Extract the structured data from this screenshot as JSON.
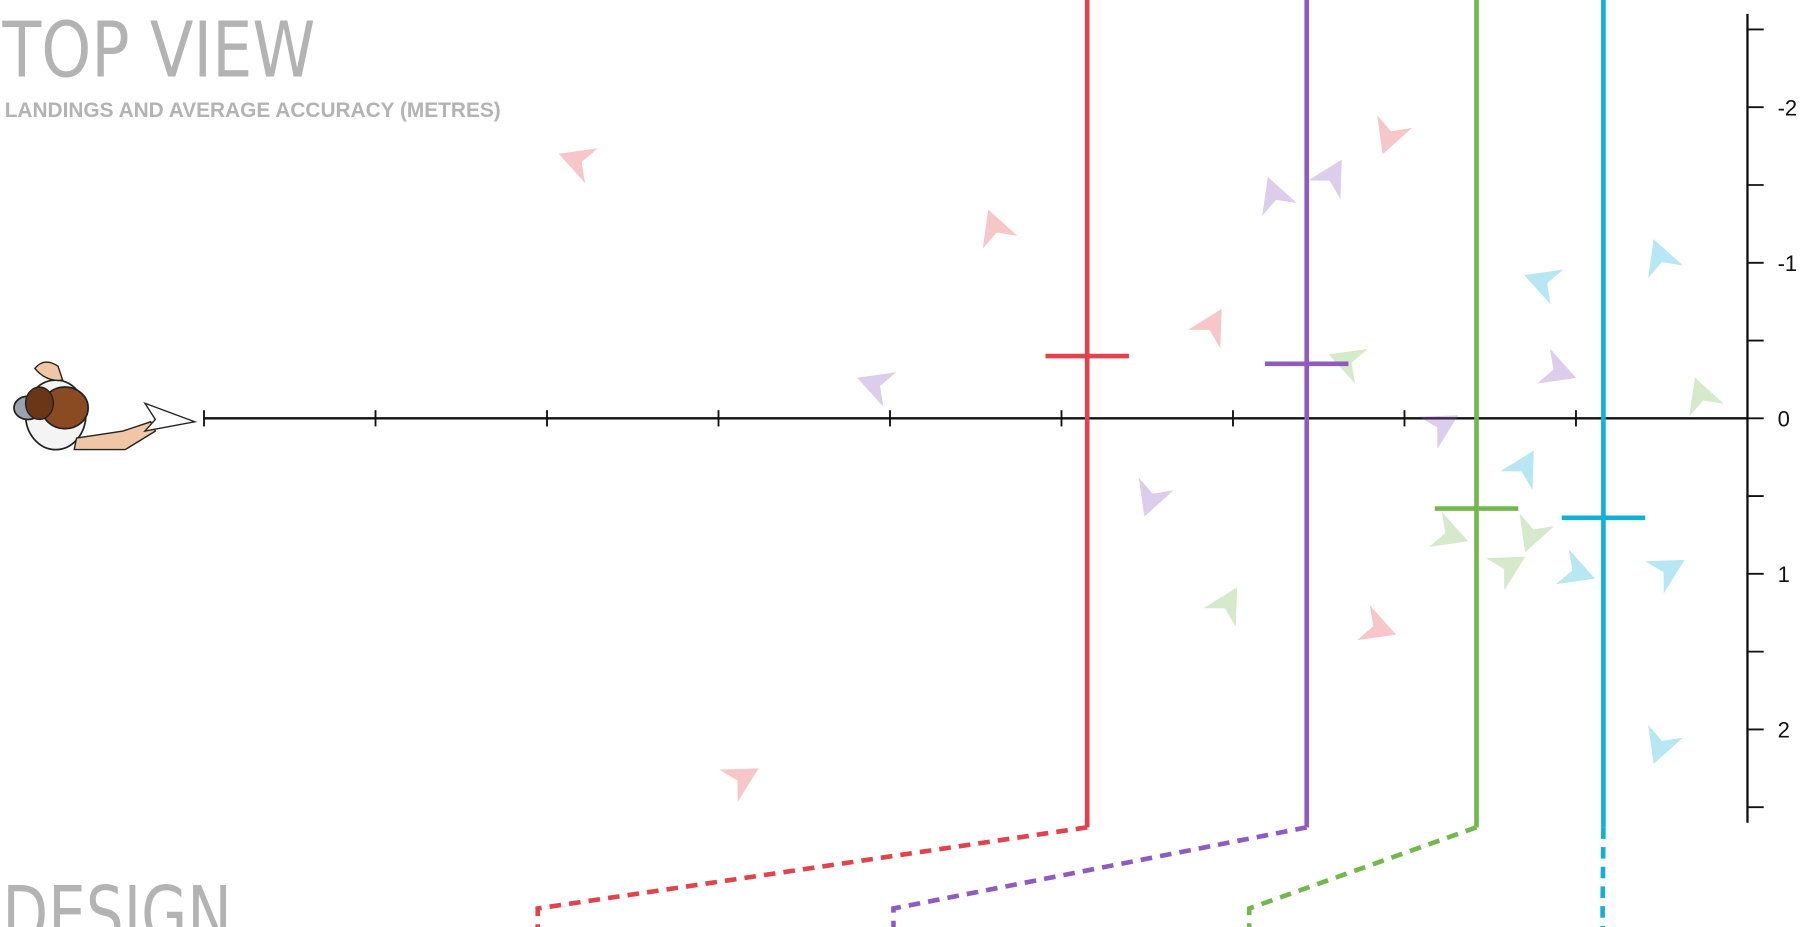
{
  "chart_data": {
    "type": "scatter",
    "title": "TOP VIEW",
    "subtitle": "LANDINGS AND AVERAGE ACCURACY (METRES)",
    "footer_title": "DESIGN",
    "xlim": [
      0,
      9
    ],
    "xticks": [
      0,
      1,
      2,
      3,
      4,
      5,
      6,
      7,
      8,
      9
    ],
    "ylim": [
      -2.6,
      2.6
    ],
    "yticks": [
      -2,
      -1,
      0,
      1,
      2
    ],
    "yminor_ticks": [
      -2.5,
      -1.5,
      -0.5,
      0.5,
      1.5,
      2.5
    ],
    "series": [
      {
        "color": "#e0434b",
        "mean_x": 5.15,
        "mean_y": -0.4,
        "x": [
          2.17,
          4.61,
          5.88,
          6.85,
          3.14,
          6.91
        ],
        "values": [
          -1.66,
          -1.23,
          -0.6,
          1.35,
          2.31,
          -1.81
        ]
      },
      {
        "color": "#8e5bbf",
        "mean_x": 6.43,
        "mean_y": -0.35,
        "x": [
          3.91,
          6.24,
          6.58,
          7.9,
          7.22,
          5.52
        ],
        "values": [
          -0.22,
          -1.44,
          -1.56,
          -0.3,
          0.04,
          0.52
        ]
      },
      {
        "color": "#72b84f",
        "mean_x": 7.42,
        "mean_y": 0.58,
        "x": [
          6.66,
          8.73,
          5.97,
          7.27,
          7.61,
          7.74
        ],
        "values": [
          -0.37,
          -0.15,
          1.19,
          0.75,
          0.95,
          0.75
        ]
      },
      {
        "color": "#12b0d6",
        "mean_x": 8.16,
        "mean_y": 0.64,
        "x": [
          7.8,
          8.49,
          7.7,
          8.01,
          8.54,
          8.49
        ],
        "values": [
          -0.88,
          -1.04,
          0.31,
          0.99,
          0.97,
          2.11
        ]
      }
    ]
  }
}
